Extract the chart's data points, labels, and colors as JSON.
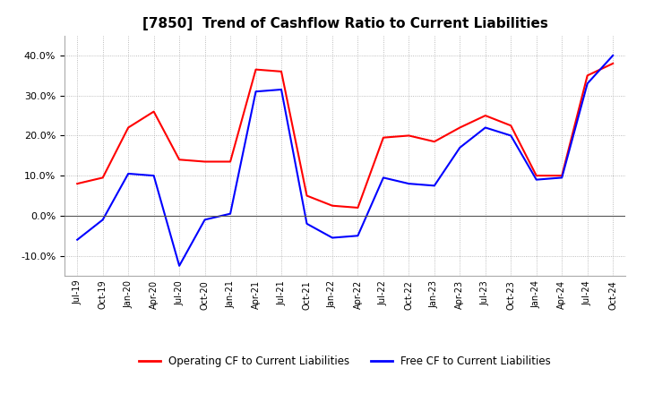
{
  "title": "[7850]  Trend of Cashflow Ratio to Current Liabilities",
  "title_fontsize": 11,
  "x_labels": [
    "Jul-19",
    "Oct-19",
    "Jan-20",
    "Apr-20",
    "Jul-20",
    "Oct-20",
    "Jan-21",
    "Apr-21",
    "Jul-21",
    "Oct-21",
    "Jan-22",
    "Apr-22",
    "Jul-22",
    "Oct-22",
    "Jan-23",
    "Apr-23",
    "Jul-23",
    "Oct-23",
    "Jan-24",
    "Apr-24",
    "Jul-24",
    "Oct-24"
  ],
  "ylim": [
    -15,
    45
  ],
  "yticks": [
    -10,
    0,
    10,
    20,
    30,
    40
  ],
  "operating_cf": [
    8.0,
    9.5,
    22.0,
    26.0,
    14.0,
    13.5,
    13.5,
    36.5,
    36.0,
    5.0,
    2.5,
    2.0,
    19.5,
    20.0,
    18.5,
    22.0,
    25.0,
    22.5,
    10.0,
    10.0,
    35.0,
    38.0
  ],
  "free_cf": [
    -6.0,
    -1.0,
    10.5,
    10.0,
    -12.5,
    -1.0,
    0.5,
    31.0,
    31.5,
    -2.0,
    -5.5,
    -5.0,
    9.5,
    8.0,
    7.5,
    17.0,
    22.0,
    20.0,
    9.0,
    9.5,
    33.0,
    40.0
  ],
  "operating_color": "#ff0000",
  "free_color": "#0000ff",
  "line_width": 1.5,
  "legend_labels": [
    "Operating CF to Current Liabilities",
    "Free CF to Current Liabilities"
  ],
  "background_color": "#ffffff",
  "grid_color": "#aaaaaa"
}
